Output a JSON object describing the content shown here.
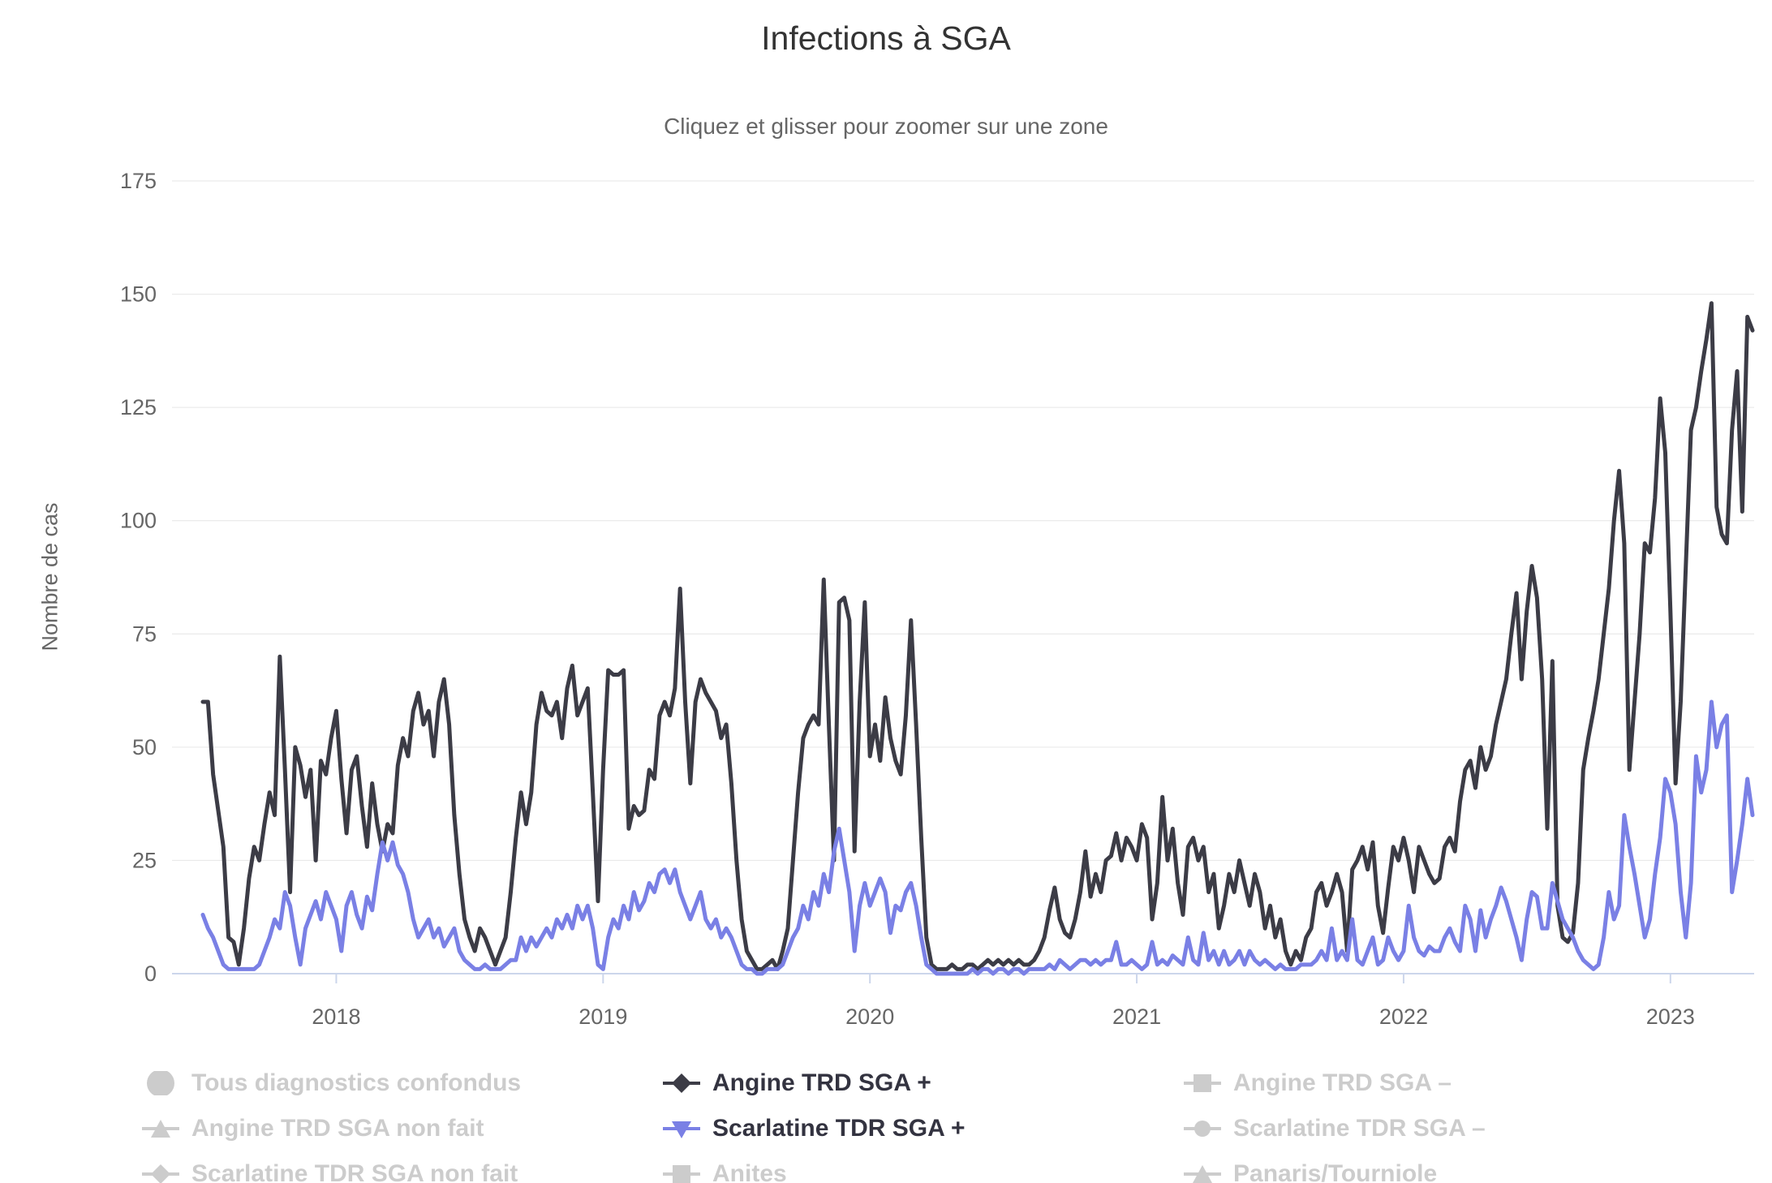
{
  "colors": {
    "angine": "#3c3c46",
    "scarlatine": "#7a80e5",
    "legend_active_text": "#333340",
    "legend_disabled": "#cccccc",
    "muted_text": "#666666",
    "grid": "#e6e6e6",
    "axis": "#ccd6eb",
    "title_text": "#333333"
  },
  "chart_data": {
    "type": "line",
    "title": "Infections à SGA",
    "subtitle": "Cliquez et glisser pour zoomer sur une zone",
    "cadence": "weekly",
    "x_start": "2017-W27",
    "x_axis": {
      "tick_labels": [
        "2018",
        "2019",
        "2020",
        "2021",
        "2022",
        "2023"
      ],
      "tick_week_index": [
        26,
        78,
        130,
        182,
        234,
        286
      ]
    },
    "y_axis": {
      "title": "Nombre de cas",
      "min": 0,
      "max": 175,
      "tick_interval": 25,
      "ticks": [
        0,
        25,
        50,
        75,
        100,
        125,
        150,
        175
      ]
    },
    "series": [
      {
        "name": "Angine TRD SGA +",
        "color": "#3c3c46",
        "marker": "diamond",
        "visible": true,
        "values": [
          [
            60,
            60,
            44,
            36,
            28,
            8,
            7,
            2,
            10,
            21,
            28,
            25,
            33,
            40,
            35,
            70,
            45,
            18,
            50,
            46,
            39,
            45,
            25,
            47,
            44,
            52
          ],
          [
            58,
            43,
            31,
            45,
            48,
            37,
            28,
            42,
            33,
            27,
            33,
            31,
            46,
            52,
            48,
            58,
            62,
            55,
            58,
            48,
            60,
            65,
            55,
            35,
            22,
            12,
            8,
            5,
            10,
            8,
            5,
            2,
            5,
            8,
            18,
            30,
            40,
            33,
            40,
            55,
            62,
            58,
            57,
            60,
            52,
            63,
            68,
            57,
            60,
            63,
            40,
            16
          ],
          [
            45,
            67,
            66,
            66,
            67,
            32,
            37,
            35,
            36,
            45,
            43,
            57,
            60,
            57,
            63,
            85,
            60,
            42,
            60,
            65,
            62,
            60,
            58,
            52,
            55,
            42,
            25,
            12,
            5,
            3,
            1,
            1,
            2,
            3,
            1,
            5,
            10,
            25,
            40,
            52,
            55,
            57,
            55,
            87,
            55,
            25,
            82,
            83,
            78,
            27,
            60,
            82
          ],
          [
            48,
            55,
            47,
            61,
            52,
            47,
            44,
            57,
            78,
            55,
            30,
            8,
            2,
            1,
            1,
            1,
            2,
            1,
            1,
            2,
            2,
            1,
            2,
            3,
            2,
            3,
            2,
            3,
            2,
            3,
            2,
            2,
            3,
            5,
            8,
            14,
            19,
            12,
            9,
            8,
            12,
            18,
            27,
            17,
            22,
            18,
            25,
            26,
            31,
            25,
            30,
            28
          ],
          [
            25,
            33,
            30,
            12,
            20,
            39,
            25,
            32,
            20,
            13,
            28,
            30,
            25,
            28,
            18,
            22,
            10,
            15,
            22,
            18,
            25,
            20,
            15,
            22,
            18,
            10,
            15,
            8,
            12,
            5,
            2,
            5,
            3,
            8,
            10,
            18,
            20,
            15,
            18,
            22,
            18,
            5,
            23,
            25,
            28,
            23,
            29,
            15,
            9,
            19,
            28,
            25
          ],
          [
            30,
            25,
            18,
            28,
            25,
            22,
            20,
            21,
            28,
            30,
            27,
            38,
            45,
            47,
            41,
            50,
            45,
            48,
            55,
            60,
            65,
            75,
            84,
            65,
            80,
            90,
            83,
            65,
            32,
            69,
            15,
            8,
            7,
            9,
            20,
            45,
            52,
            58,
            65,
            75,
            85,
            100,
            111,
            95,
            45,
            60,
            75,
            95,
            93,
            105,
            127,
            115
          ],
          [
            80,
            42,
            60,
            90,
            120,
            125,
            133,
            140,
            148,
            103,
            97,
            95,
            120,
            133,
            102,
            145,
            142
          ]
        ]
      },
      {
        "name": "Scarlatine TDR SGA +",
        "color": "#7a80e5",
        "marker": "triangle-down",
        "visible": true,
        "values": [
          [
            13,
            10,
            8,
            5,
            2,
            1,
            1,
            1,
            1,
            1,
            1,
            2,
            5,
            8,
            12,
            10,
            18,
            15,
            8,
            2,
            10,
            13,
            16,
            12,
            18,
            15
          ],
          [
            12,
            5,
            15,
            18,
            13,
            10,
            17,
            14,
            22,
            29,
            25,
            29,
            24,
            22,
            18,
            12,
            8,
            10,
            12,
            8,
            10,
            6,
            8,
            10,
            5,
            3,
            2,
            1,
            1,
            2,
            1,
            1,
            1,
            2,
            3,
            3,
            8,
            5,
            8,
            6,
            8,
            10,
            8,
            12,
            10,
            13,
            10,
            15,
            12,
            15,
            10,
            2
          ],
          [
            1,
            8,
            12,
            10,
            15,
            12,
            18,
            14,
            16,
            20,
            18,
            22,
            23,
            20,
            23,
            18,
            15,
            12,
            15,
            18,
            12,
            10,
            12,
            8,
            10,
            8,
            5,
            2,
            1,
            1,
            0,
            0,
            1,
            1,
            1,
            2,
            5,
            8,
            10,
            15,
            12,
            18,
            15,
            22,
            18,
            27,
            32,
            25,
            18,
            5,
            15,
            20
          ],
          [
            15,
            18,
            21,
            18,
            9,
            15,
            14,
            18,
            20,
            15,
            8,
            2,
            1,
            0,
            0,
            0,
            0,
            0,
            0,
            0,
            1,
            0,
            1,
            1,
            0,
            1,
            1,
            0,
            1,
            1,
            0,
            1,
            1,
            1,
            1,
            2,
            1,
            3,
            2,
            1,
            2,
            3,
            3,
            2,
            3,
            2,
            3,
            3,
            7,
            2,
            2,
            3
          ],
          [
            2,
            1,
            2,
            7,
            2,
            3,
            2,
            4,
            3,
            2,
            8,
            3,
            2,
            9,
            3,
            5,
            2,
            5,
            2,
            3,
            5,
            2,
            5,
            3,
            2,
            3,
            2,
            1,
            2,
            1,
            1,
            1,
            2,
            2,
            2,
            3,
            5,
            3,
            10,
            3,
            5,
            3,
            12,
            3,
            2,
            5,
            8,
            2,
            3,
            8,
            5,
            3
          ],
          [
            5,
            15,
            8,
            5,
            4,
            6,
            5,
            5,
            8,
            10,
            7,
            5,
            15,
            12,
            5,
            14,
            8,
            12,
            15,
            19,
            16,
            12,
            8,
            3,
            12,
            18,
            17,
            10,
            10,
            20,
            16,
            12,
            10,
            8,
            5,
            3,
            2,
            1,
            2,
            8,
            18,
            12,
            15,
            35,
            28,
            22,
            15,
            8,
            12,
            22,
            30,
            43
          ],
          [
            40,
            33,
            18,
            8,
            20,
            48,
            40,
            45,
            60,
            50,
            55,
            57,
            18,
            25,
            33,
            43,
            35
          ]
        ]
      }
    ],
    "legend": {
      "position": "bottom",
      "items": [
        {
          "label": "Tous diagnostics confondus",
          "marker": "circle",
          "big": true,
          "show_line": false,
          "enabled": false,
          "color": "#cccccc"
        },
        {
          "label": "Angine TRD SGA +",
          "marker": "diamond",
          "big": false,
          "show_line": true,
          "enabled": true,
          "color": "#3c3c46"
        },
        {
          "label": "Angine TRD SGA –",
          "marker": "square",
          "big": false,
          "show_line": true,
          "enabled": false,
          "color": "#cccccc"
        },
        {
          "label": "Angine TRD SGA non fait",
          "marker": "triangle",
          "big": false,
          "show_line": true,
          "enabled": false,
          "color": "#cccccc"
        },
        {
          "label": "Scarlatine TDR SGA +",
          "marker": "triangle-down",
          "big": false,
          "show_line": true,
          "enabled": true,
          "color": "#7a80e5"
        },
        {
          "label": "Scarlatine TDR SGA –",
          "marker": "circle",
          "big": false,
          "show_line": true,
          "enabled": false,
          "color": "#cccccc"
        },
        {
          "label": "Scarlatine TDR SGA non fait",
          "marker": "diamond",
          "big": false,
          "show_line": true,
          "enabled": false,
          "color": "#cccccc"
        },
        {
          "label": "Anites",
          "marker": "square",
          "big": false,
          "show_line": true,
          "enabled": false,
          "color": "#cccccc"
        },
        {
          "label": "Panaris/Tourniole",
          "marker": "triangle",
          "big": false,
          "show_line": true,
          "enabled": false,
          "color": "#cccccc"
        }
      ]
    }
  }
}
